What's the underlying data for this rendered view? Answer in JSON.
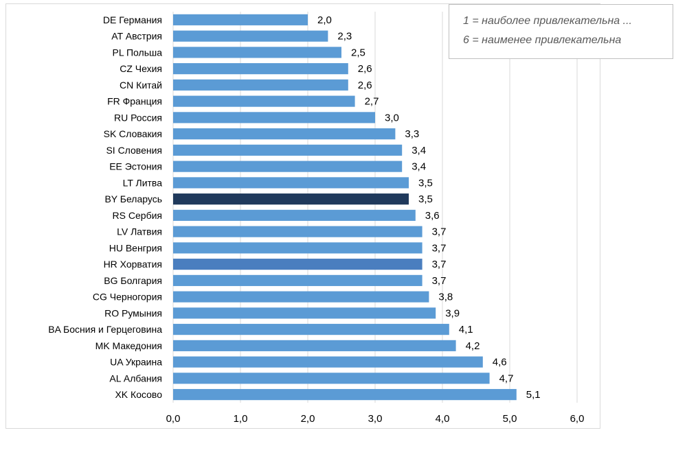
{
  "legend_notes": {
    "line1": "1 = наиболее привлекательна ...",
    "line2": "6 = наименее привлекательна"
  },
  "colors": {
    "bar_default": "#5b9bd5",
    "bar_belarus": "#203a5c",
    "bar_croatia": "#4a7ebf",
    "gridline": "#d9d9d9",
    "text": "#000000"
  },
  "chart_data": {
    "type": "bar",
    "orientation": "horizontal",
    "title": "",
    "xlabel": "",
    "ylabel": "",
    "xlim": [
      0,
      6
    ],
    "x_ticks": [
      "0,0",
      "1,0",
      "2,0",
      "3,0",
      "4,0",
      "5,0",
      "6,0"
    ],
    "grid": "vertical",
    "categories": [
      "DE Германия",
      "AT Австрия",
      "PL Польша",
      "CZ Чехия",
      "CN Китай",
      "FR Франция",
      "RU Россия",
      "SK Словакия",
      "SI Словения",
      "EE Эстония",
      "LT Литва",
      "BY Беларусь",
      "RS Сербия",
      "LV Латвия",
      "HU Венгрия",
      "HR Хорватия",
      "BG Болгария",
      "CG Черногория",
      "RO Румыния",
      "BA Босния и Герцеговина",
      "MK Македония",
      "UA Украина",
      "AL Албания",
      "XK Косово"
    ],
    "values": [
      2.0,
      2.3,
      2.5,
      2.6,
      2.6,
      2.7,
      3.0,
      3.3,
      3.4,
      3.4,
      3.5,
      3.5,
      3.6,
      3.7,
      3.7,
      3.7,
      3.7,
      3.8,
      3.9,
      4.1,
      4.2,
      4.6,
      4.7,
      5.1
    ],
    "value_labels": [
      "2,0",
      "2,3",
      "2,5",
      "2,6",
      "2,6",
      "2,7",
      "3,0",
      "3,3",
      "3,4",
      "3,4",
      "3,5",
      "3,5",
      "3,6",
      "3,7",
      "3,7",
      "3,7",
      "3,7",
      "3,8",
      "3,9",
      "4,1",
      "4,2",
      "4,6",
      "4,7",
      "5,1"
    ],
    "highlight": {
      "BY Беларусь": "#203a5c",
      "HR Хорватия": "#4a7ebf"
    }
  }
}
